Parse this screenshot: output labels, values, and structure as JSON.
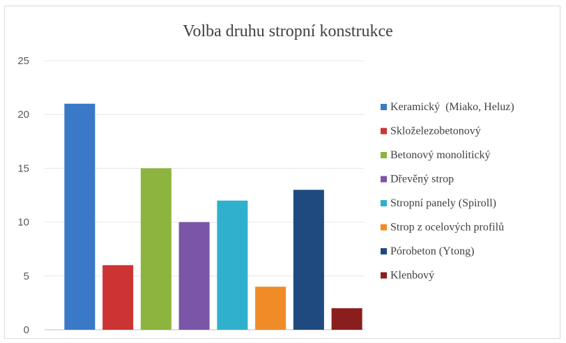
{
  "chart_data": {
    "type": "bar",
    "title": "Volba druhu stropní konstrukce",
    "xlabel": "",
    "ylabel": "",
    "ylim": [
      0,
      25
    ],
    "yticks": [
      0,
      5,
      10,
      15,
      20,
      25
    ],
    "grid": true,
    "legend_position": "right",
    "series": [
      {
        "name": "Keramický  (Miako, Heluz)",
        "value": 21,
        "color": "#3a78c8"
      },
      {
        "name": "Skloželezobetonový",
        "value": 6,
        "color": "#cc3333"
      },
      {
        "name": "Betonový monolitický",
        "value": 15,
        "color": "#8db43e"
      },
      {
        "name": "Dřevěný strop",
        "value": 10,
        "color": "#7a55a8"
      },
      {
        "name": "Stropní panely (Spiroll)",
        "value": 12,
        "color": "#2fb0cc"
      },
      {
        "name": "Strop z ocelových profilů",
        "value": 4,
        "color": "#f08c28"
      },
      {
        "name": "Pórobeton (Ytong)",
        "value": 13,
        "color": "#1f4a7f"
      },
      {
        "name": "Klenbový",
        "value": 2,
        "color": "#8a1e1e"
      }
    ]
  }
}
